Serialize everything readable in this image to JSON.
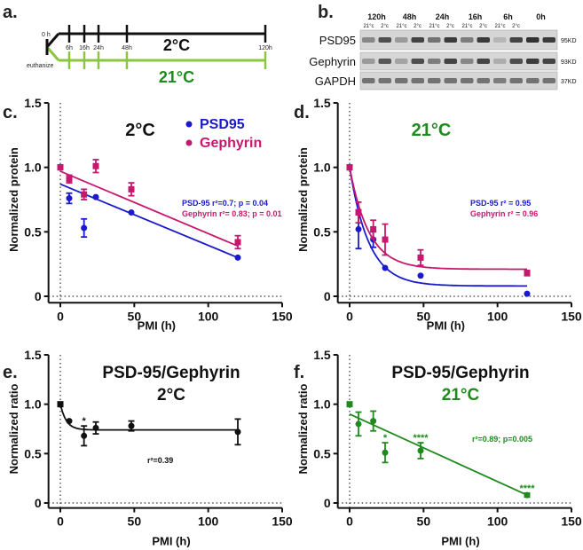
{
  "panel_labels": {
    "a": "a.",
    "b": "b.",
    "c": "c.",
    "d": "d.",
    "e": "e.",
    "f": "f."
  },
  "colors": {
    "blue": "#1a1acc",
    "magenta": "#c8176e",
    "green": "#1e8a1e",
    "black": "#111111",
    "light_green": "#8cc63f"
  },
  "timeline": {
    "start": "0 h",
    "euthanize": "euthanize",
    "cold_label": "2°C",
    "warm_label": "21°C",
    "ticks": [
      "6h",
      "16h",
      "24h",
      "48h",
      "120h"
    ]
  },
  "blot": {
    "timepoints": [
      "120h",
      "48h",
      "24h",
      "16h",
      "6h",
      "0h"
    ],
    "temp_labels": [
      "21°c",
      "2°c"
    ],
    "rows": [
      {
        "name": "PSD95",
        "kd": "95KD"
      },
      {
        "name": "Gephyrin",
        "kd": "93KD"
      },
      {
        "name": "GAPDH",
        "kd": "37KD"
      }
    ]
  },
  "chart_data": [
    {
      "id": "c",
      "type": "scatter",
      "title": "2°C",
      "xlabel": "PMI (h)",
      "ylabel": "Normalized protein",
      "xlim": [
        0,
        150
      ],
      "ylim": [
        0,
        1.5
      ],
      "xticks": [
        0,
        50,
        100,
        150
      ],
      "yticks": [
        0,
        0.5,
        1.0,
        1.5
      ],
      "ytick_labels": [
        "0",
        "0.5",
        "1.0",
        "1.5"
      ],
      "legend": [
        "PSD95",
        "Gephyrin"
      ],
      "series": [
        {
          "name": "PSD95",
          "x": [
            0,
            6,
            16,
            24,
            48,
            120
          ],
          "y": [
            1.0,
            0.76,
            0.53,
            0.77,
            0.65,
            0.3
          ],
          "err": [
            0,
            0.04,
            0.07,
            0,
            0,
            0
          ],
          "fit": "linear",
          "fit_start": 0.87,
          "fit_end": 0.3
        },
        {
          "name": "Gephyrin",
          "x": [
            0,
            6,
            16,
            24,
            48,
            120
          ],
          "y": [
            1.0,
            0.91,
            0.79,
            1.01,
            0.83,
            0.42
          ],
          "err": [
            0,
            0.03,
            0.04,
            0.05,
            0.05,
            0.05
          ],
          "fit": "linear",
          "fit_start": 0.97,
          "fit_end": 0.39
        }
      ],
      "annotations": [
        "PSD-95 r²=0.7; p = 0.04",
        "Gephyrin r²= 0.83; p = 0.01"
      ]
    },
    {
      "id": "d",
      "type": "scatter",
      "title": "21°C",
      "xlabel": "PMI (h)",
      "ylabel": "Normalized protein",
      "xlim": [
        0,
        150
      ],
      "ylim": [
        0,
        1.5
      ],
      "xticks": [
        0,
        50,
        100,
        150
      ],
      "yticks": [
        0,
        0.5,
        1.0,
        1.5
      ],
      "ytick_labels": [
        "0",
        "0.5",
        "1.0",
        "1.5"
      ],
      "series": [
        {
          "name": "PSD95",
          "x": [
            0,
            6,
            16,
            24,
            48,
            120
          ],
          "y": [
            1.0,
            0.52,
            0.44,
            0.22,
            0.16,
            0.02
          ],
          "err": [
            0,
            0.15,
            0.06,
            0,
            0,
            0
          ],
          "fit": "exp",
          "fit_plateau": 0.08,
          "fit_tau": 13
        },
        {
          "name": "Gephyrin",
          "x": [
            0,
            6,
            16,
            24,
            48,
            120
          ],
          "y": [
            1.0,
            0.65,
            0.52,
            0.44,
            0.3,
            0.18
          ],
          "err": [
            0,
            0.08,
            0.07,
            0.12,
            0.06,
            0.02
          ],
          "fit": "exp",
          "fit_plateau": 0.21,
          "fit_tau": 13
        }
      ],
      "annotations": [
        "PSD-95 r² = 0.95",
        "Gephyrin r² = 0.96"
      ]
    },
    {
      "id": "e",
      "type": "scatter",
      "title": "PSD-95/Gephyrin",
      "subtitle": "2°C",
      "xlabel": "PMI (h)",
      "ylabel": "Normalized ratio",
      "xlim": [
        0,
        150
      ],
      "ylim": [
        0,
        1.5
      ],
      "xticks": [
        0,
        50,
        100,
        150
      ],
      "yticks": [
        0,
        0.5,
        1.0,
        1.5
      ],
      "ytick_labels": [
        "0",
        "0.5",
        "1.0",
        "1.5"
      ],
      "series": [
        {
          "name": "ratio",
          "x": [
            0,
            6,
            16,
            24,
            48,
            120
          ],
          "y": [
            1.0,
            0.83,
            0.68,
            0.76,
            0.78,
            0.72
          ],
          "err": [
            0,
            0,
            0.1,
            0.06,
            0.05,
            0.13
          ],
          "stars": [
            "",
            "",
            "*",
            "",
            "",
            ""
          ],
          "fit": "exp",
          "fit_plateau": 0.74,
          "fit_tau": 4
        }
      ],
      "annotations": [
        "r²=0.39"
      ]
    },
    {
      "id": "f",
      "type": "scatter",
      "title": "PSD-95/Gephyrin",
      "subtitle": "21°C",
      "xlabel": "PMI (h)",
      "ylabel": "Normalized ratio",
      "xlim": [
        0,
        150
      ],
      "ylim": [
        0,
        1.5
      ],
      "xticks": [
        0,
        50,
        100,
        150
      ],
      "yticks": [
        0,
        0.5,
        1.0,
        1.5
      ],
      "ytick_labels": [
        "0",
        "0.5",
        "1.0",
        "1.5"
      ],
      "series": [
        {
          "name": "ratio",
          "x": [
            0,
            6,
            16,
            24,
            48,
            120
          ],
          "y": [
            1.0,
            0.8,
            0.83,
            0.51,
            0.53,
            0.08
          ],
          "err": [
            0,
            0.12,
            0.1,
            0.1,
            0.08,
            0.02
          ],
          "stars": [
            "",
            "",
            "",
            "*",
            "****",
            "****"
          ],
          "fit": "linear",
          "fit_start": 0.9,
          "fit_end": 0.08
        }
      ],
      "annotations": [
        "r²=0.89;  p=0.005"
      ]
    }
  ]
}
